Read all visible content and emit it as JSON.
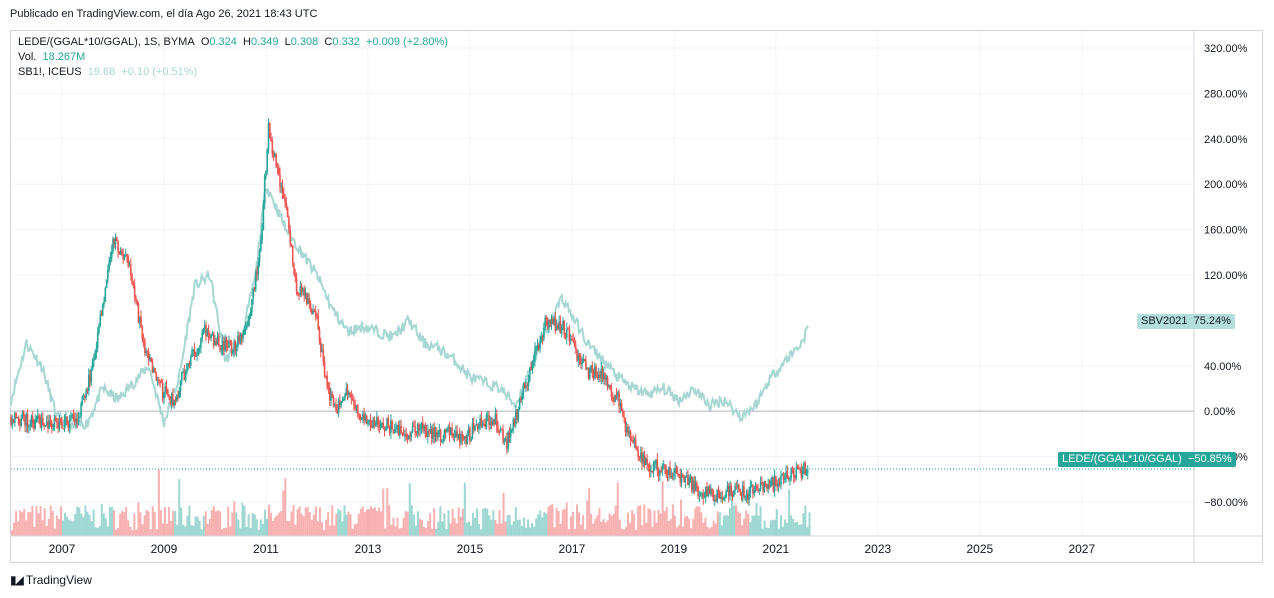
{
  "header": {
    "published": "Publicado en TradingView.com, el día Ago 26, 2021 18:43 UTC"
  },
  "legend": {
    "symbol": "LEDE/(GGAL*10/GGAL), 1S, BYMA",
    "o_label": "O",
    "o_value": "0.324",
    "h_label": "H",
    "h_value": "0.349",
    "l_label": "L",
    "l_value": "0.308",
    "c_label": "C",
    "c_value": "0.332",
    "change": "+0.009 (+2.80%)",
    "vol_label": "Vol.",
    "vol_value": "18.267M",
    "compare_symbol": "SB1!, ICEUS",
    "compare_value": "19.68",
    "compare_change": "+0.10 (+0.51%)"
  },
  "tags": {
    "compare_name": "SBV2021",
    "compare_pct": "75.24%",
    "main_name": "LEDE/(GGAL*10/GGAL)",
    "main_pct": "−50.85%"
  },
  "footer": {
    "brand": "TradingView",
    "brand_icon": "tradingview-logo-icon"
  },
  "colors": {
    "up": "#26a69a",
    "down": "#ef5350",
    "compare": "#a7d7d2",
    "grid": "#f0f3fa",
    "zero": "#b2b5be"
  },
  "chart_data": {
    "type": "line",
    "y_unit": "%",
    "yticks": [
      "320.00%",
      "280.00%",
      "240.00%",
      "200.00%",
      "160.00%",
      "120.00%",
      "40.00%",
      "0.00%",
      "−40.00%",
      "−80.00%"
    ],
    "xticks": [
      "2007",
      "2009",
      "2011",
      "2013",
      "2015",
      "2017",
      "2019",
      "2021",
      "2023",
      "2025",
      "2027"
    ],
    "ylim": [
      -110,
      335
    ],
    "xlim": [
      2006.0,
      2029.2
    ],
    "grid": true,
    "series": [
      {
        "name": "LEDE/(GGAL*10/GGAL)",
        "x": [
          2006.0,
          2006.5,
          2007.0,
          2007.3,
          2007.6,
          2007.85,
          2008.0,
          2008.3,
          2008.6,
          2008.9,
          2009.2,
          2009.5,
          2009.8,
          2010.1,
          2010.4,
          2010.7,
          2010.9,
          2011.05,
          2011.2,
          2011.4,
          2011.6,
          2011.8,
          2012.0,
          2012.2,
          2012.4,
          2012.6,
          2012.9,
          2013.2,
          2013.5,
          2013.8,
          2014.0,
          2014.3,
          2014.6,
          2014.9,
          2015.2,
          2015.5,
          2015.7,
          2015.9,
          2016.2,
          2016.5,
          2016.8,
          2017.0,
          2017.3,
          2017.6,
          2017.9,
          2018.1,
          2018.4,
          2018.7,
          2019.0,
          2019.3,
          2019.6,
          2019.9,
          2020.2,
          2020.5,
          2020.8,
          2021.1,
          2021.4,
          2021.65
        ],
        "values": [
          -5,
          -10,
          -12,
          -8,
          40,
          110,
          150,
          130,
          60,
          20,
          10,
          45,
          70,
          60,
          55,
          90,
          150,
          250,
          215,
          180,
          110,
          100,
          80,
          20,
          5,
          15,
          -5,
          -10,
          -15,
          -20,
          -15,
          -22,
          -18,
          -25,
          -10,
          -5,
          -30,
          -5,
          40,
          80,
          75,
          60,
          35,
          30,
          10,
          -20,
          -45,
          -50,
          -55,
          -62,
          -72,
          -75,
          -70,
          -72,
          -68,
          -60,
          -55,
          -51
        ]
      },
      {
        "name": "SBV2021",
        "x": [
          2006.0,
          2006.3,
          2006.6,
          2006.9,
          2007.2,
          2007.5,
          2007.8,
          2008.1,
          2008.4,
          2008.7,
          2009.0,
          2009.3,
          2009.6,
          2009.9,
          2010.2,
          2010.5,
          2010.8,
          2011.0,
          2011.2,
          2011.4,
          2011.7,
          2012.0,
          2012.3,
          2012.6,
          2012.9,
          2013.2,
          2013.5,
          2013.8,
          2014.1,
          2014.4,
          2014.7,
          2015.0,
          2015.3,
          2015.6,
          2015.9,
          2016.2,
          2016.5,
          2016.8,
          2017.0,
          2017.3,
          2017.6,
          2017.9,
          2018.2,
          2018.5,
          2018.8,
          2019.1,
          2019.4,
          2019.7,
          2020.0,
          2020.3,
          2020.6,
          2020.9,
          2021.2,
          2021.5,
          2021.65
        ],
        "values": [
          10,
          60,
          40,
          -5,
          -15,
          -10,
          20,
          10,
          25,
          40,
          -10,
          30,
          110,
          120,
          45,
          60,
          120,
          200,
          180,
          160,
          140,
          120,
          90,
          70,
          75,
          70,
          65,
          80,
          60,
          55,
          45,
          30,
          25,
          20,
          5,
          40,
          70,
          100,
          85,
          60,
          45,
          30,
          20,
          15,
          20,
          10,
          20,
          5,
          10,
          -5,
          5,
          30,
          45,
          60,
          75
        ]
      }
    ],
    "volume": {
      "label": "Vol."
    }
  }
}
